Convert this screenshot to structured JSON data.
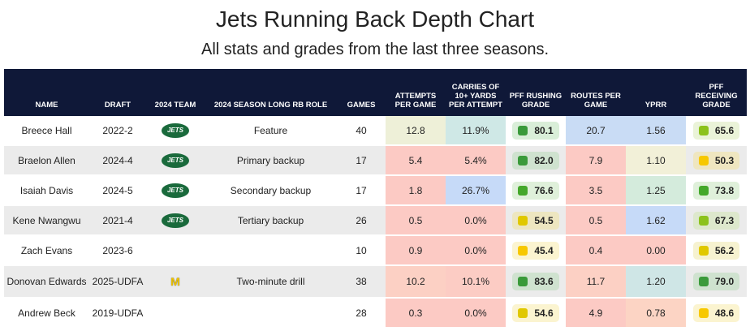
{
  "title": "Jets Running Back Depth Chart",
  "subtitle": "All stats and grades from the last three seasons.",
  "chart_data": {
    "type": "table",
    "columns": [
      "NAME",
      "DRAFT",
      "2024 TEAM",
      "2024 SEASON LONG RB ROLE",
      "GAMES",
      "ATTEMPTS PER GAME",
      "CARRIES OF 10+ YARDS PER ATTEMPT",
      "PFF RUSHING GRADE",
      "ROUTES PER GAME",
      "YPRR",
      "PFF RECEIVING GRADE"
    ],
    "rows": [
      {
        "name": "Breece Hall",
        "draft": "2022-2",
        "team": "jets-logo",
        "team_text": "JETS",
        "role": "Feature",
        "games": "40",
        "att": "12.8",
        "att_bg": "#eef0d8",
        "car": "11.9%",
        "car_bg": "#cfe8e6",
        "rush": "80.1",
        "rush_c": "#3a9a3a",
        "rush_bg": "#d9eed8",
        "routes": "20.7",
        "routes_bg": "#c9dcf5",
        "yprr": "1.56",
        "yprr_bg": "#c9dcf5",
        "rec": "65.6",
        "rec_c": "#8cc21c",
        "rec_bg": "#eaf3d8"
      },
      {
        "name": "Braelon Allen",
        "draft": "2024-4",
        "team": "jets-logo",
        "team_text": "JETS",
        "role": "Primary backup",
        "games": "17",
        "att": "5.4",
        "att_bg": "#fccac4",
        "car": "5.4%",
        "car_bg": "#fccac4",
        "rush": "82.0",
        "rush_c": "#3a9a3a",
        "rush_bg": "#cfe2cf",
        "routes": "7.9",
        "routes_bg": "#fccac4",
        "yprr": "1.10",
        "yprr_bg": "#f2f0d8",
        "rec": "50.3",
        "rec_c": "#f7c800",
        "rec_bg": "#efe6c0"
      },
      {
        "name": "Isaiah Davis",
        "draft": "2024-5",
        "team": "jets-logo",
        "team_text": "JETS",
        "role": "Secondary backup",
        "games": "17",
        "att": "1.8",
        "att_bg": "#fccac4",
        "car": "26.7%",
        "car_bg": "#c6daf8",
        "rush": "76.6",
        "rush_c": "#44a82a",
        "rush_bg": "#dff0da",
        "routes": "3.5",
        "routes_bg": "#fccac4",
        "yprr": "1.25",
        "yprr_bg": "#d4ebdc",
        "rec": "73.8",
        "rec_c": "#44a82a",
        "rec_bg": "#dff0da"
      },
      {
        "name": "Kene Nwangwu",
        "draft": "2021-4",
        "team": "jets-logo",
        "team_text": "JETS",
        "role": "Tertiary backup",
        "games": "26",
        "att": "0.5",
        "att_bg": "#fccac4",
        "car": "0.0%",
        "car_bg": "#fccac4",
        "rush": "54.5",
        "rush_c": "#e0c800",
        "rush_bg": "#ede6c0",
        "routes": "0.5",
        "routes_bg": "#fccac4",
        "yprr": "1.62",
        "yprr_bg": "#c6daf8",
        "rec": "67.3",
        "rec_c": "#8cc21c",
        "rec_bg": "#dde8cc"
      },
      {
        "name": "Zach Evans",
        "draft": "2023-6",
        "team": "",
        "team_text": "",
        "role": "",
        "games": "10",
        "att": "0.9",
        "att_bg": "#fccac4",
        "car": "0.0%",
        "car_bg": "#fccac4",
        "rush": "45.4",
        "rush_c": "#f7c800",
        "rush_bg": "#fbf4d0",
        "routes": "0.4",
        "routes_bg": "#fccac4",
        "yprr": "0.00",
        "yprr_bg": "#fccac4",
        "rec": "56.2",
        "rec_c": "#e0c800",
        "rec_bg": "#f6f2d0"
      },
      {
        "name": "Donovan Edwards",
        "draft": "2025-UDFA",
        "team": "michigan-logo",
        "team_text": "M",
        "role": "Two-minute drill",
        "games": "38",
        "att": "10.2",
        "att_bg": "#fcd0c4",
        "car": "10.1%",
        "car_bg": "#fcccc4",
        "rush": "83.6",
        "rush_c": "#3a9a3a",
        "rush_bg": "#cfe2cf",
        "routes": "11.7",
        "routes_bg": "#fcd0c4",
        "yprr": "1.20",
        "yprr_bg": "#cfe6e6",
        "rec": "79.0",
        "rec_c": "#3a9a3a",
        "rec_bg": "#cfe2cf"
      },
      {
        "name": "Andrew Beck",
        "draft": "2019-UDFA",
        "team": "",
        "team_text": "",
        "role": "",
        "games": "28",
        "att": "0.3",
        "att_bg": "#fccac4",
        "car": "0.0%",
        "car_bg": "#fccac4",
        "rush": "54.6",
        "rush_c": "#e0c800",
        "rush_bg": "#fbf4d0",
        "routes": "4.9",
        "routes_bg": "#fccac4",
        "yprr": "0.78",
        "yprr_bg": "#fcd4c4",
        "rec": "48.6",
        "rec_c": "#f7c800",
        "rec_bg": "#fbf4d0"
      }
    ]
  }
}
